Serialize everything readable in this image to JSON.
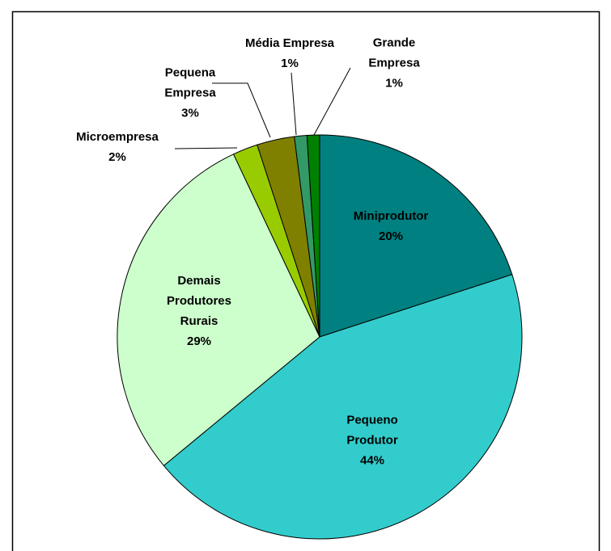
{
  "chart_data": {
    "type": "pie",
    "categories": [
      "Miniprodutor",
      "Pequeno Produtor",
      "Demais Produtores Rurais",
      "Microempresa",
      "Pequena Empresa",
      "Média Empresa",
      "Grande Empresa"
    ],
    "values": [
      20,
      44,
      29,
      2,
      3,
      1,
      1
    ],
    "value_labels": [
      "20%",
      "44%",
      "29%",
      "2%",
      "3%",
      "1%",
      "1%"
    ],
    "colors": [
      "#008080",
      "#33cccc",
      "#ccffcc",
      "#99cc00",
      "#808000",
      "#339966",
      "#008000"
    ]
  }
}
